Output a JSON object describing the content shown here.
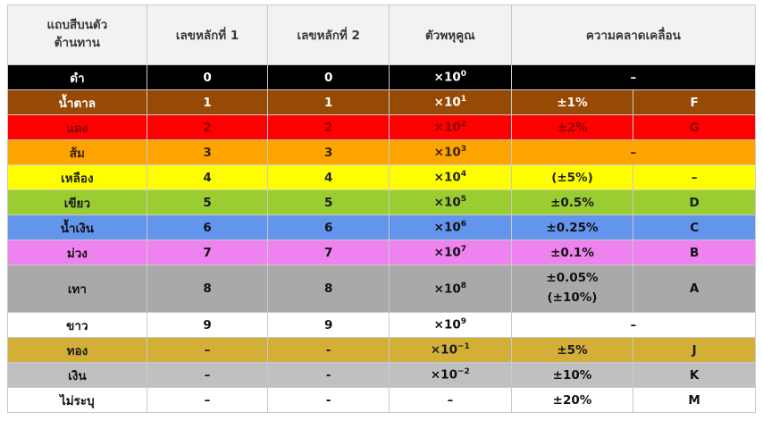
{
  "headers": {
    "band_line1": "แถบสีบนตัว",
    "band_line2": "ต้านทาน",
    "digit1": "เลขหลักที่ 1",
    "digit2": "เลขหลักที่ 2",
    "multiplier": "ตัวพหุคูณ",
    "tolerance": "ความคลาดเคลื่อน"
  },
  "rows": [
    {
      "color": "ดำ",
      "d1": "0",
      "d2": "0",
      "mult_base": "×10",
      "mult_exp": "0",
      "tol": "–",
      "code": "",
      "bg": "#000000",
      "fg": "#ffffff"
    },
    {
      "color": "น้ำตาล",
      "d1": "1",
      "d2": "1",
      "mult_base": "×10",
      "mult_exp": "1",
      "tol": "±1%",
      "code": "F",
      "bg": "#974a06",
      "fg": "#ffffff"
    },
    {
      "color": "แดง",
      "d1": "2",
      "d2": "2",
      "mult_base": "×10",
      "mult_exp": "2",
      "tol": "±2%",
      "code": "G",
      "bg": "#fe0000",
      "fg": "#8a0000"
    },
    {
      "color": "ส้ม",
      "d1": "3",
      "d2": "3",
      "mult_base": "×10",
      "mult_exp": "3",
      "tol": "–",
      "code": "",
      "bg": "#fea401",
      "fg": "#3a2400"
    },
    {
      "color": "เหลือง",
      "d1": "4",
      "d2": "4",
      "mult_base": "×10",
      "mult_exp": "4",
      "tol": "(±5%)",
      "code": "–",
      "bg": "#fefe00",
      "fg": "#222222"
    },
    {
      "color": "เขียว",
      "d1": "5",
      "d2": "5",
      "mult_base": "×10",
      "mult_exp": "5",
      "tol": "±0.5%",
      "code": "D",
      "bg": "#9acd32",
      "fg": "#1a1a1a"
    },
    {
      "color": "น้ำเงิน",
      "d1": "6",
      "d2": "6",
      "mult_base": "×10",
      "mult_exp": "6",
      "tol": "±0.25%",
      "code": "C",
      "bg": "#6495ed",
      "fg": "#111111"
    },
    {
      "color": "ม่วง",
      "d1": "7",
      "d2": "7",
      "mult_base": "×10",
      "mult_exp": "7",
      "tol": "±0.1%",
      "code": "B",
      "bg": "#ee82ee",
      "fg": "#111111"
    },
    {
      "color": "เทา",
      "d1": "8",
      "d2": "8",
      "mult_base": "×10",
      "mult_exp": "8",
      "tol": "±0.05%",
      "tol2": "(±10%)",
      "code": "A",
      "bg": "#a9a9a9",
      "fg": "#111111"
    },
    {
      "color": "ขาว",
      "d1": "9",
      "d2": "9",
      "mult_base": "×10",
      "mult_exp": "9",
      "tol": "–",
      "code": "",
      "bg": "#ffffff",
      "fg": "#111111"
    },
    {
      "color": "ทอง",
      "d1": "–",
      "d2": "-",
      "mult_base": "×10",
      "mult_exp": "−1",
      "tol": "±5%",
      "code": "J",
      "bg": "#d4af37",
      "fg": "#1a1a1a"
    },
    {
      "color": "เงิน",
      "d1": "–",
      "d2": "-",
      "mult_base": "×10",
      "mult_exp": "−2",
      "tol": "±10%",
      "code": "K",
      "bg": "#c0c0c0",
      "fg": "#111111"
    },
    {
      "color": "ไม่ระบุ",
      "d1": "–",
      "d2": "-",
      "mult_base": "–",
      "mult_exp": "",
      "tol": "±20%",
      "code": "M",
      "bg": "#ffffff",
      "fg": "#111111"
    }
  ]
}
